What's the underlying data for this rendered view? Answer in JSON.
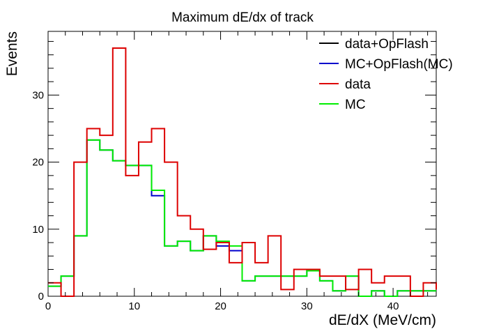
{
  "chart_data": {
    "type": "histogram",
    "title": "Maximum dE/dx of track",
    "xlabel": "dE/dX (MeV/cm)",
    "ylabel": "Events",
    "xlim": [
      0,
      45
    ],
    "ylim": [
      0,
      39.5
    ],
    "x_ticks": [
      0,
      10,
      20,
      30,
      40
    ],
    "y_ticks": [
      0,
      10,
      20,
      30
    ],
    "legend_position": "top-right",
    "bin_width": 1.5,
    "bin_start": 0,
    "series": [
      {
        "name": "data+OpFlash",
        "color": "#000000",
        "values": []
      },
      {
        "name": "MC+OpFlash(MC)",
        "color": "#0000cc",
        "values": [
          1.5,
          3,
          9,
          23.3,
          21.8,
          20.2,
          19.5,
          19.5,
          15,
          7.5,
          8.2,
          6.8,
          9,
          7.5,
          6.8,
          2.3,
          3,
          3,
          3,
          3,
          3.8,
          2.3,
          0.8,
          3,
          0,
          0.8,
          0,
          0.8,
          0.8,
          0.8
        ]
      },
      {
        "name": "data",
        "color": "#dd0000",
        "values": [
          2,
          0,
          20,
          25,
          24,
          37,
          18,
          23,
          25,
          20,
          12,
          10,
          7,
          8,
          5,
          8,
          5,
          9,
          1,
          4,
          4,
          3,
          3,
          1,
          4,
          2,
          3,
          3,
          0,
          2,
          1
        ]
      },
      {
        "name": "MC",
        "color": "#00ee00",
        "values": [
          1.5,
          3,
          9,
          23.3,
          21.8,
          20.2,
          19.5,
          19.5,
          15.8,
          7.5,
          8.2,
          6.8,
          9,
          8.2,
          7.5,
          2.3,
          3,
          3,
          3,
          3,
          3.8,
          2.3,
          0.8,
          3,
          0,
          0.8,
          0,
          0.8,
          0.8,
          0.8
        ]
      }
    ]
  }
}
